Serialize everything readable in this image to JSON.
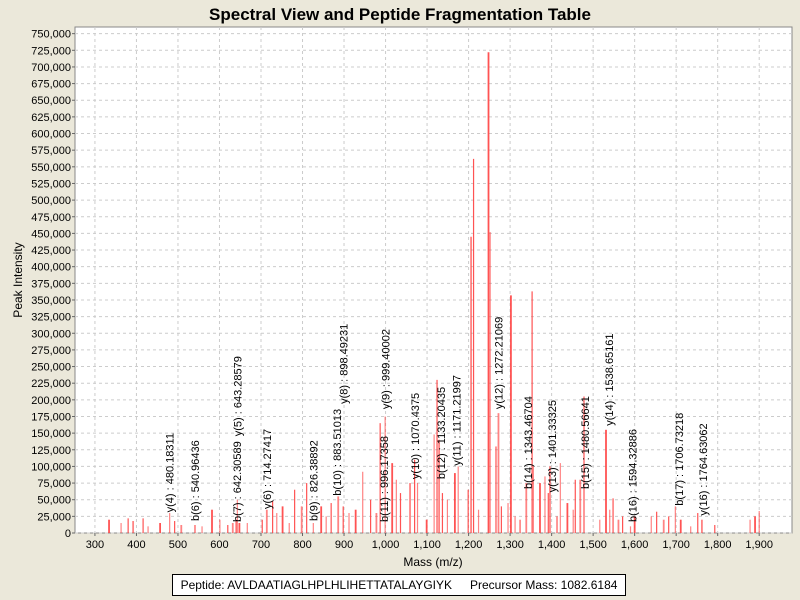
{
  "chart_data": {
    "type": "bar",
    "title": "Spectral View and Peptide Fragmentation Table",
    "xlabel": "Mass (m/z)",
    "ylabel": "Peak Intensity",
    "xlim": [
      252,
      1979
    ],
    "ylim": [
      0,
      760000
    ],
    "xticks": [
      300,
      400,
      500,
      600,
      700,
      800,
      900,
      1000,
      1100,
      1200,
      1300,
      1400,
      1500,
      1600,
      1700,
      1800,
      1900
    ],
    "yticks": [
      0,
      25000,
      50000,
      75000,
      100000,
      125000,
      150000,
      175000,
      200000,
      225000,
      250000,
      275000,
      300000,
      325000,
      350000,
      375000,
      400000,
      425000,
      450000,
      475000,
      500000,
      525000,
      550000,
      575000,
      600000,
      625000,
      650000,
      675000,
      700000,
      725000,
      750000
    ],
    "grid": true,
    "series_color": "#ff4040",
    "peaks": [
      [
        334,
        20000
      ],
      [
        363,
        15000
      ],
      [
        380,
        22000
      ],
      [
        392,
        18000
      ],
      [
        416,
        22000
      ],
      [
        428,
        10000
      ],
      [
        457,
        15000
      ],
      [
        480,
        30000
      ],
      [
        492,
        18000
      ],
      [
        508,
        12000
      ],
      [
        541,
        12000
      ],
      [
        558,
        10000
      ],
      [
        582,
        35000
      ],
      [
        601,
        20000
      ],
      [
        620,
        12000
      ],
      [
        632,
        15000
      ],
      [
        640,
        20000
      ],
      [
        643,
        50000
      ],
      [
        648,
        15000
      ],
      [
        667,
        15000
      ],
      [
        703,
        20000
      ],
      [
        714,
        35000
      ],
      [
        728,
        48000
      ],
      [
        738,
        30000
      ],
      [
        752,
        40000
      ],
      [
        768,
        15000
      ],
      [
        781,
        65000
      ],
      [
        798,
        40000
      ],
      [
        810,
        75000
      ],
      [
        826,
        15000
      ],
      [
        845,
        40000
      ],
      [
        857,
        25000
      ],
      [
        869,
        45000
      ],
      [
        886,
        55000
      ],
      [
        898,
        40000
      ],
      [
        912,
        30000
      ],
      [
        928,
        35000
      ],
      [
        945,
        92000
      ],
      [
        964,
        50000
      ],
      [
        978,
        30000
      ],
      [
        987,
        165000
      ],
      [
        999,
        175000
      ],
      [
        1016,
        105000
      ],
      [
        1026,
        80000
      ],
      [
        1036,
        60000
      ],
      [
        1059,
        75000
      ],
      [
        1070,
        110000
      ],
      [
        1077,
        75000
      ],
      [
        1099,
        20000
      ],
      [
        1117,
        148000
      ],
      [
        1124,
        230000
      ],
      [
        1129,
        140000
      ],
      [
        1137,
        60000
      ],
      [
        1149,
        50000
      ],
      [
        1167,
        90000
      ],
      [
        1175,
        100000
      ],
      [
        1199,
        65000
      ],
      [
        1206,
        445000
      ],
      [
        1212,
        562000
      ],
      [
        1224,
        35000
      ],
      [
        1248,
        722000
      ],
      [
        1252,
        452000
      ],
      [
        1266,
        130000
      ],
      [
        1272,
        180000
      ],
      [
        1279,
        40000
      ],
      [
        1295,
        45000
      ],
      [
        1302,
        357000
      ],
      [
        1312,
        25000
      ],
      [
        1324,
        20000
      ],
      [
        1339,
        75000
      ],
      [
        1353,
        363000
      ],
      [
        1356,
        100000
      ],
      [
        1372,
        75000
      ],
      [
        1384,
        85000
      ],
      [
        1392,
        60000
      ],
      [
        1396,
        100000
      ],
      [
        1413,
        25000
      ],
      [
        1421,
        105000
      ],
      [
        1438,
        45000
      ],
      [
        1452,
        35000
      ],
      [
        1457,
        80000
      ],
      [
        1469,
        80000
      ],
      [
        1478,
        205000
      ],
      [
        1516,
        20000
      ],
      [
        1531,
        155000
      ],
      [
        1540,
        35000
      ],
      [
        1548,
        52000
      ],
      [
        1561,
        20000
      ],
      [
        1571,
        25000
      ],
      [
        1590,
        10000
      ],
      [
        1600,
        25000
      ],
      [
        1640,
        25000
      ],
      [
        1653,
        32000
      ],
      [
        1670,
        20000
      ],
      [
        1682,
        25000
      ],
      [
        1698,
        40000
      ],
      [
        1711,
        20000
      ],
      [
        1735,
        10000
      ],
      [
        1752,
        30000
      ],
      [
        1762,
        20000
      ],
      [
        1793,
        12000
      ],
      [
        1878,
        20000
      ],
      [
        1890,
        25000
      ],
      [
        1900,
        33000
      ]
    ],
    "annotations": [
      {
        "label": "y(4) : 480.18311",
        "mass": 480.18311,
        "intensity": 25000
      },
      {
        "label": "b(6) : 540.96436",
        "mass": 540.96436,
        "intensity": 12000
      },
      {
        "label": "b(7) : 642.30589",
        "mass": 642.30589,
        "intensity": 10000
      },
      {
        "label": "y(5) : 643.28579",
        "mass": 643.28579,
        "intensity": 10000
      },
      {
        "label": "y(6) : 714.27417",
        "mass": 714.27417,
        "intensity": 30000
      },
      {
        "label": "b(9) : 826.38892",
        "mass": 826.38892,
        "intensity": 12000
      },
      {
        "label": "b(10) : 883.51013",
        "mass": 883.51013,
        "intensity": 50000
      },
      {
        "label": "y(8) : 898.49231",
        "mass": 898.49231,
        "intensity": 35000
      },
      {
        "label": "b(11) : 996.17358",
        "mass": 996.17358,
        "intensity": 10000
      },
      {
        "label": "y(9) : 999.40002",
        "mass": 999.40002,
        "intensity": 180000
      },
      {
        "label": "y(10) : 1070.4375",
        "mass": 1070.4375,
        "intensity": 75000
      },
      {
        "label": "b(12) : 1133.20435",
        "mass": 1133.20435,
        "intensity": 75000
      },
      {
        "label": "y(11) : 1171.21997",
        "mass": 1171.21997,
        "intensity": 95000
      },
      {
        "label": "y(12) : 1272.21069",
        "mass": 1272.21069,
        "intensity": 180000
      },
      {
        "label": "b(14) : 1343.46704",
        "mass": 1343.46704,
        "intensity": 60000
      },
      {
        "label": "y(13) : 1401.33325",
        "mass": 1401.33325,
        "intensity": 55000
      },
      {
        "label": "b(15) : 1480.56641",
        "mass": 1480.56641,
        "intensity": 60000
      },
      {
        "label": "y(14) : 1538.65161",
        "mass": 1538.65161,
        "intensity": 155000
      },
      {
        "label": "b(16) : 1594.32886",
        "mass": 1594.32886,
        "intensity": 10000
      },
      {
        "label": "b(17) : 1706.73218",
        "mass": 1706.73218,
        "intensity": 35000
      },
      {
        "label": "y(16) : 1764.63062",
        "mass": 1764.63062,
        "intensity": 20000
      }
    ]
  },
  "footer": {
    "peptide": "Peptide: AVLDAATIAGLHPLHLIHETTATALAYGIYK",
    "precursor": "Precursor Mass: 1082.6184"
  }
}
